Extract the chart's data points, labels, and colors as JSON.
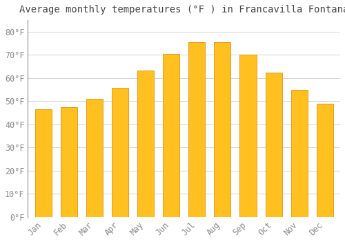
{
  "title": "Average monthly temperatures (°F ) in Francavilla Fontana",
  "months": [
    "Jan",
    "Feb",
    "Mar",
    "Apr",
    "May",
    "Jun",
    "Jul",
    "Aug",
    "Sep",
    "Oct",
    "Nov",
    "Dec"
  ],
  "values": [
    46.4,
    47.3,
    50.9,
    55.9,
    63.1,
    70.5,
    75.4,
    75.4,
    70.0,
    62.2,
    54.9,
    49.0
  ],
  "bar_color": "#FFC020",
  "bar_edge_color": "#E09010",
  "background_color": "#FFFFFF",
  "grid_color": "#CCCCCC",
  "text_color": "#888888",
  "title_color": "#444444",
  "spine_color": "#888888",
  "ylim": [
    0,
    85
  ],
  "yticks": [
    0,
    10,
    20,
    30,
    40,
    50,
    60,
    70,
    80
  ],
  "title_fontsize": 10,
  "tick_fontsize": 8.5
}
